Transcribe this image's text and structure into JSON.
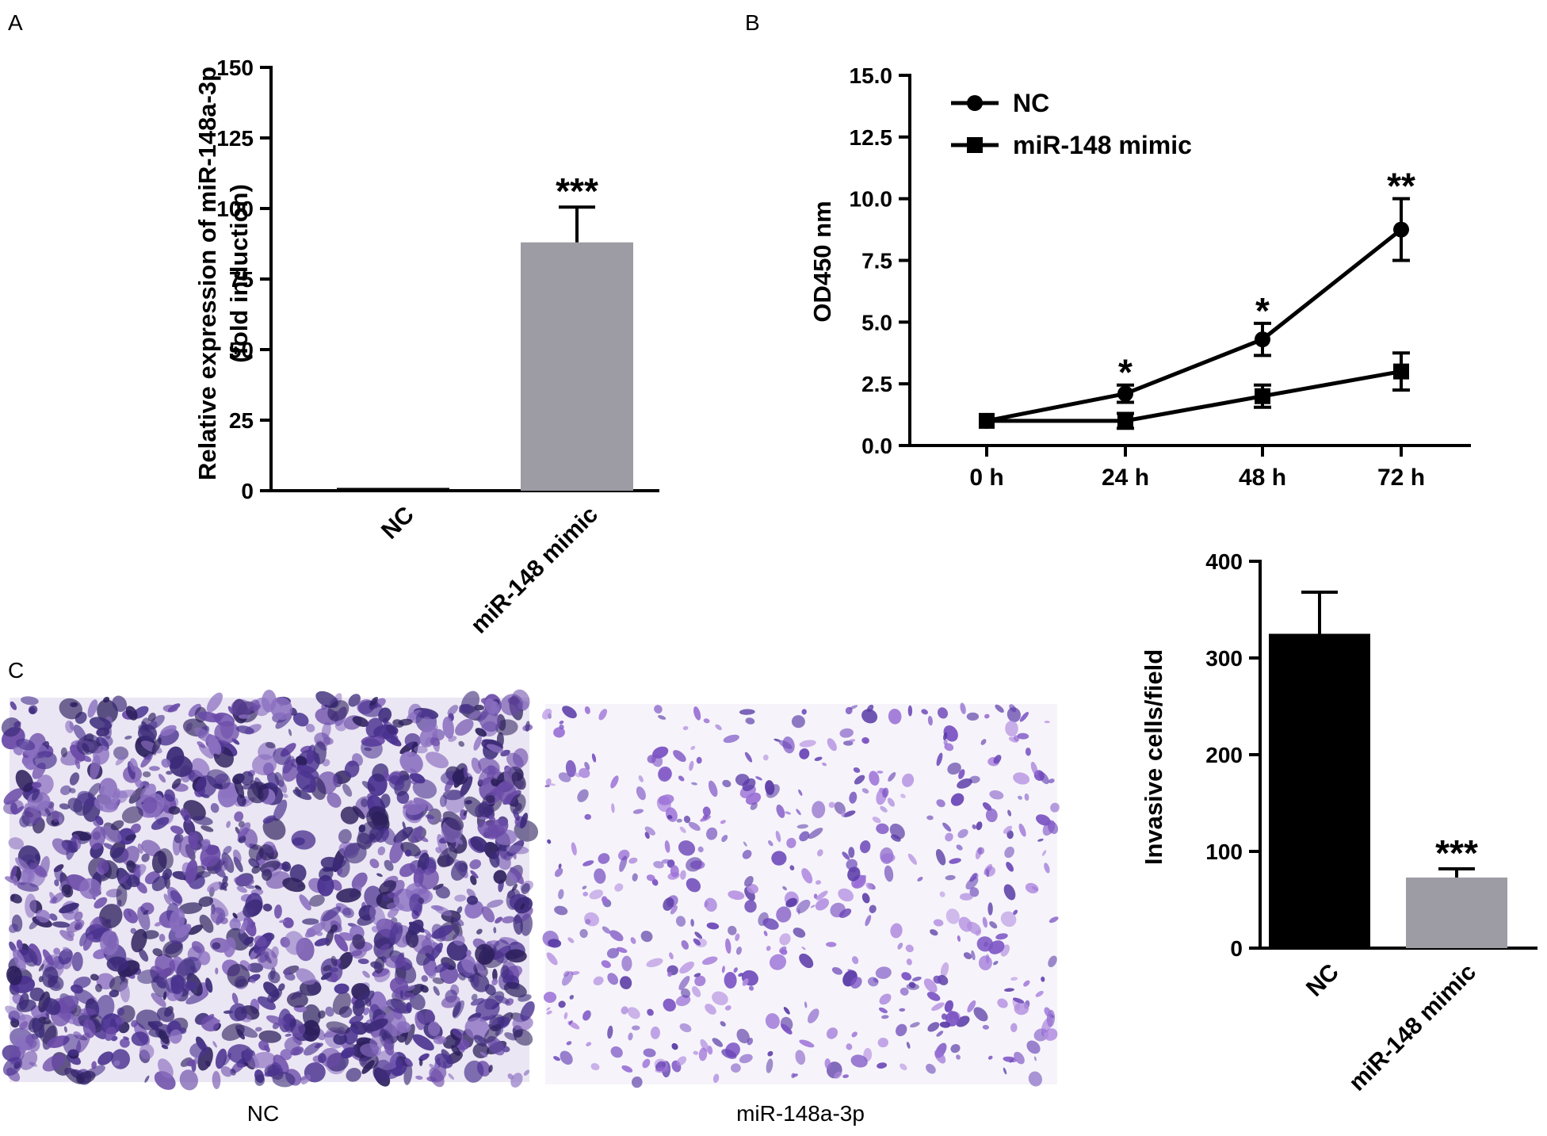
{
  "panel_labels": {
    "a": "A",
    "b": "B",
    "c": "C"
  },
  "colors": {
    "black": "#000000",
    "gray": "#9d9ca4",
    "stain_dark": "#3b2a78",
    "stain_light": "#8a5fc6"
  },
  "micrograph_captions": {
    "left": "NC",
    "right": "miR-148a-3p"
  },
  "chart_data": [
    {
      "type": "bar",
      "panel": "A",
      "categories": [
        "NC",
        "miR-148 mimic"
      ],
      "values": [
        1,
        88
      ],
      "errors": [
        0,
        12.5
      ],
      "significance": [
        "",
        "***"
      ],
      "ylabel": "Relative expression of miR-148a-3p",
      "ylabel2": "(fold induction)",
      "ylim": [
        0,
        150
      ],
      "yticks": [
        "0",
        "25",
        "50",
        "75",
        "100",
        "125",
        "150"
      ],
      "bar_colors": [
        "#000000",
        "#9d9ca4"
      ]
    },
    {
      "type": "line",
      "panel": "B",
      "x": [
        "0 h",
        "24 h",
        "48 h",
        "72 h"
      ],
      "series": [
        {
          "name": "NC",
          "marker": "circle",
          "values": [
            1.0,
            2.1,
            4.3,
            8.75
          ],
          "errors": [
            0,
            0.35,
            0.65,
            1.25
          ]
        },
        {
          "name": "miR-148 mimic",
          "marker": "square",
          "values": [
            1.0,
            1.0,
            2.0,
            3.0
          ],
          "errors": [
            0,
            0.3,
            0.45,
            0.75
          ]
        }
      ],
      "significance": [
        "",
        "*",
        "*",
        "**"
      ],
      "ylabel": "OD450 nm",
      "ylim": [
        0,
        15
      ],
      "yticks": [
        "0.0",
        "2.5",
        "5.0",
        "7.5",
        "10.0",
        "12.5",
        "15.0"
      ],
      "legend": "top-left"
    },
    {
      "type": "bar",
      "panel": "C",
      "categories": [
        "NC",
        "miR-148 mimic"
      ],
      "values": [
        325,
        73
      ],
      "errors": [
        43,
        9
      ],
      "significance": [
        "",
        "***"
      ],
      "ylabel": "Invasive cells/field",
      "ylim": [
        0,
        400
      ],
      "yticks": [
        "0",
        "100",
        "200",
        "300",
        "400"
      ],
      "bar_colors": [
        "#000000",
        "#9d9ca4"
      ]
    }
  ]
}
